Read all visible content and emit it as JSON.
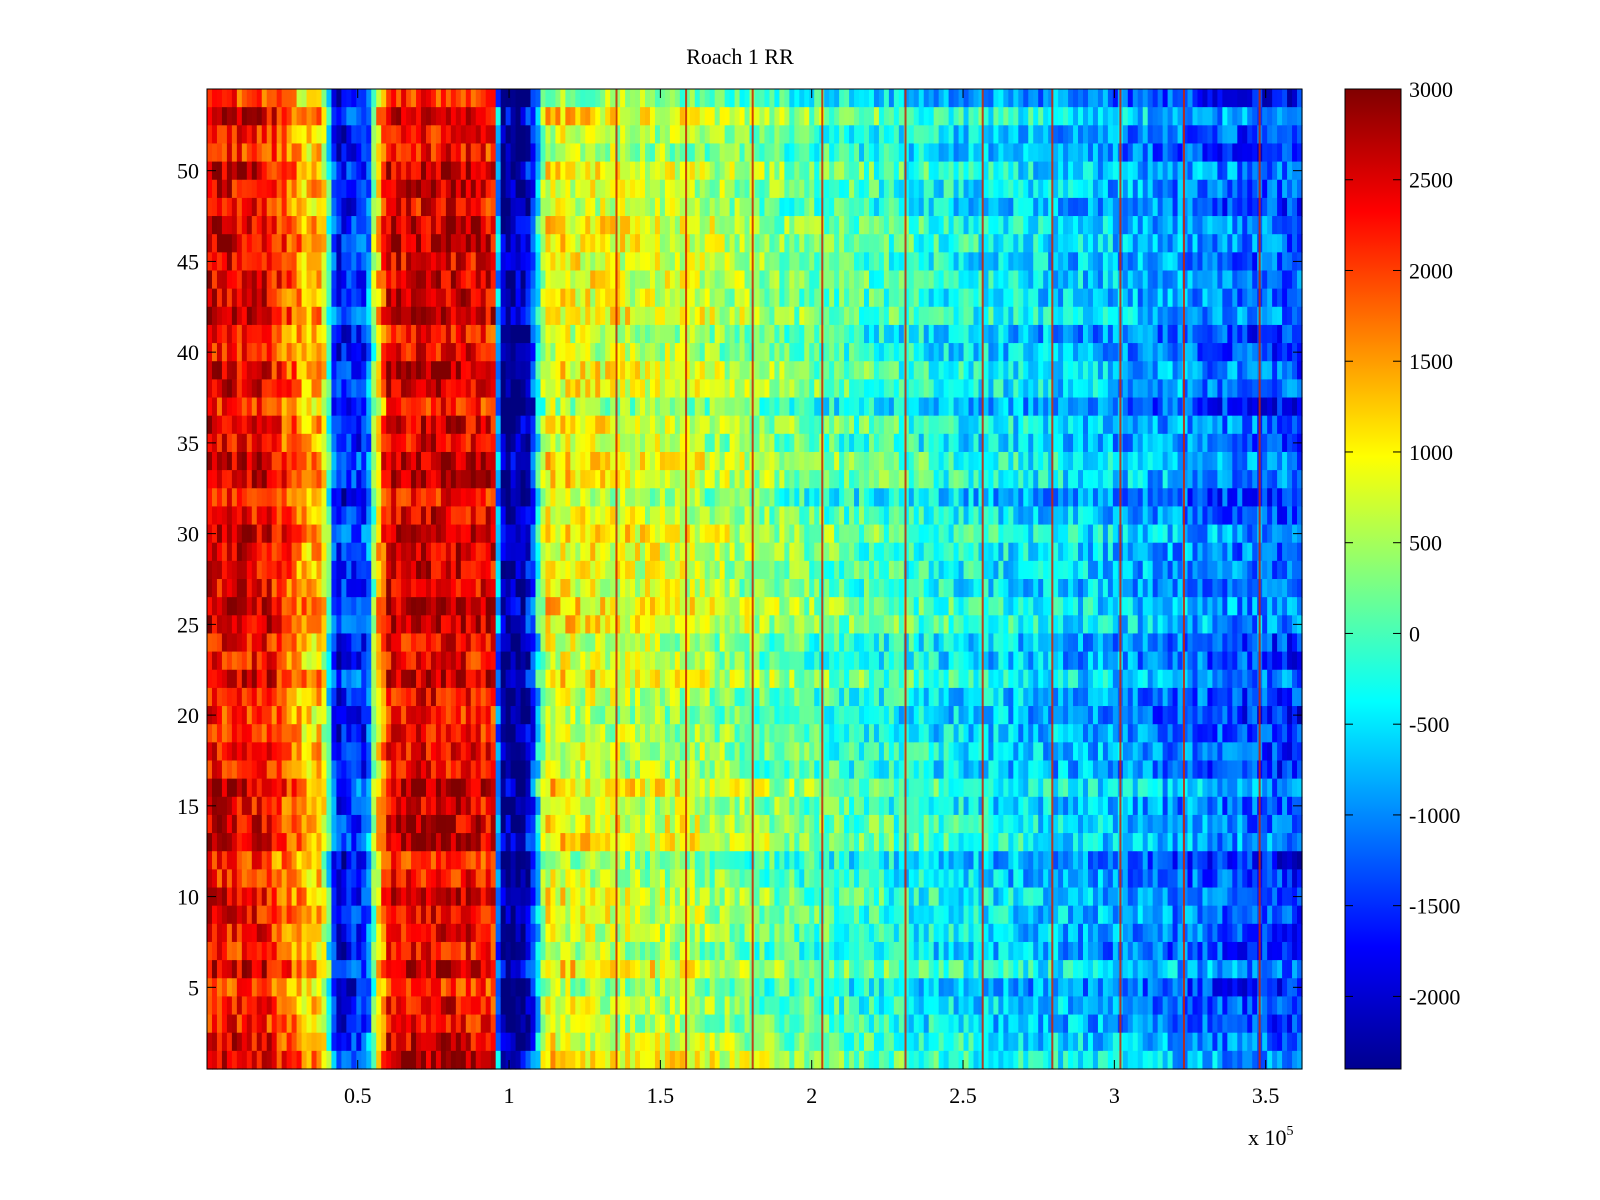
{
  "chart_data": {
    "type": "heatmap",
    "title": "Roach 1 RR",
    "xlabel": "",
    "ylabel": "",
    "x_multiplier_label": "x 10",
    "x_multiplier_exponent": "5",
    "xlim": [
      0.002,
      3.62
    ],
    "ylim": [
      0.5,
      54.5
    ],
    "rows": 54,
    "xticks": [
      0.5,
      1,
      1.5,
      2,
      2.5,
      3,
      3.5
    ],
    "xtick_labels": [
      "0.5",
      "1",
      "1.5",
      "2",
      "2.5",
      "3",
      "3.5"
    ],
    "yticks": [
      5,
      10,
      15,
      20,
      25,
      30,
      35,
      40,
      45,
      50
    ],
    "ytick_labels": [
      "5",
      "10",
      "15",
      "20",
      "25",
      "30",
      "35",
      "40",
      "45",
      "50"
    ],
    "colormap": "jet",
    "clim": [
      -2400,
      3000
    ],
    "colorbar_ticks": [
      3000,
      2500,
      2000,
      1500,
      1000,
      500,
      0,
      -500,
      -1000,
      -1500,
      -2000
    ],
    "colorbar_tick_labels": [
      "3000",
      "2500",
      "2000",
      "1500",
      "1000",
      "500",
      "0",
      "-500",
      "-1000",
      "-1500",
      "-2000"
    ],
    "column_profile": {
      "x": [
        0.002,
        0.2,
        0.3,
        0.33,
        0.38,
        0.43,
        0.46,
        0.53,
        0.56,
        0.6,
        0.8,
        0.95,
        0.97,
        1.05,
        1.08,
        1.12,
        1.4,
        1.6,
        2.0,
        2.3,
        2.6,
        3.0,
        3.3,
        3.62
      ],
      "value": [
        2400,
        2300,
        1600,
        1200,
        1400,
        -1800,
        -1600,
        -1500,
        800,
        2400,
        2500,
        2300,
        -2300,
        -2300,
        -1400,
        900,
        700,
        600,
        100,
        -200,
        -500,
        -800,
        -1100,
        -1400
      ]
    },
    "vertical_streaks_x": [
      1.355,
      1.585,
      1.805,
      2.035,
      2.31,
      2.565,
      2.795,
      3.02,
      3.23,
      3.48
    ]
  }
}
